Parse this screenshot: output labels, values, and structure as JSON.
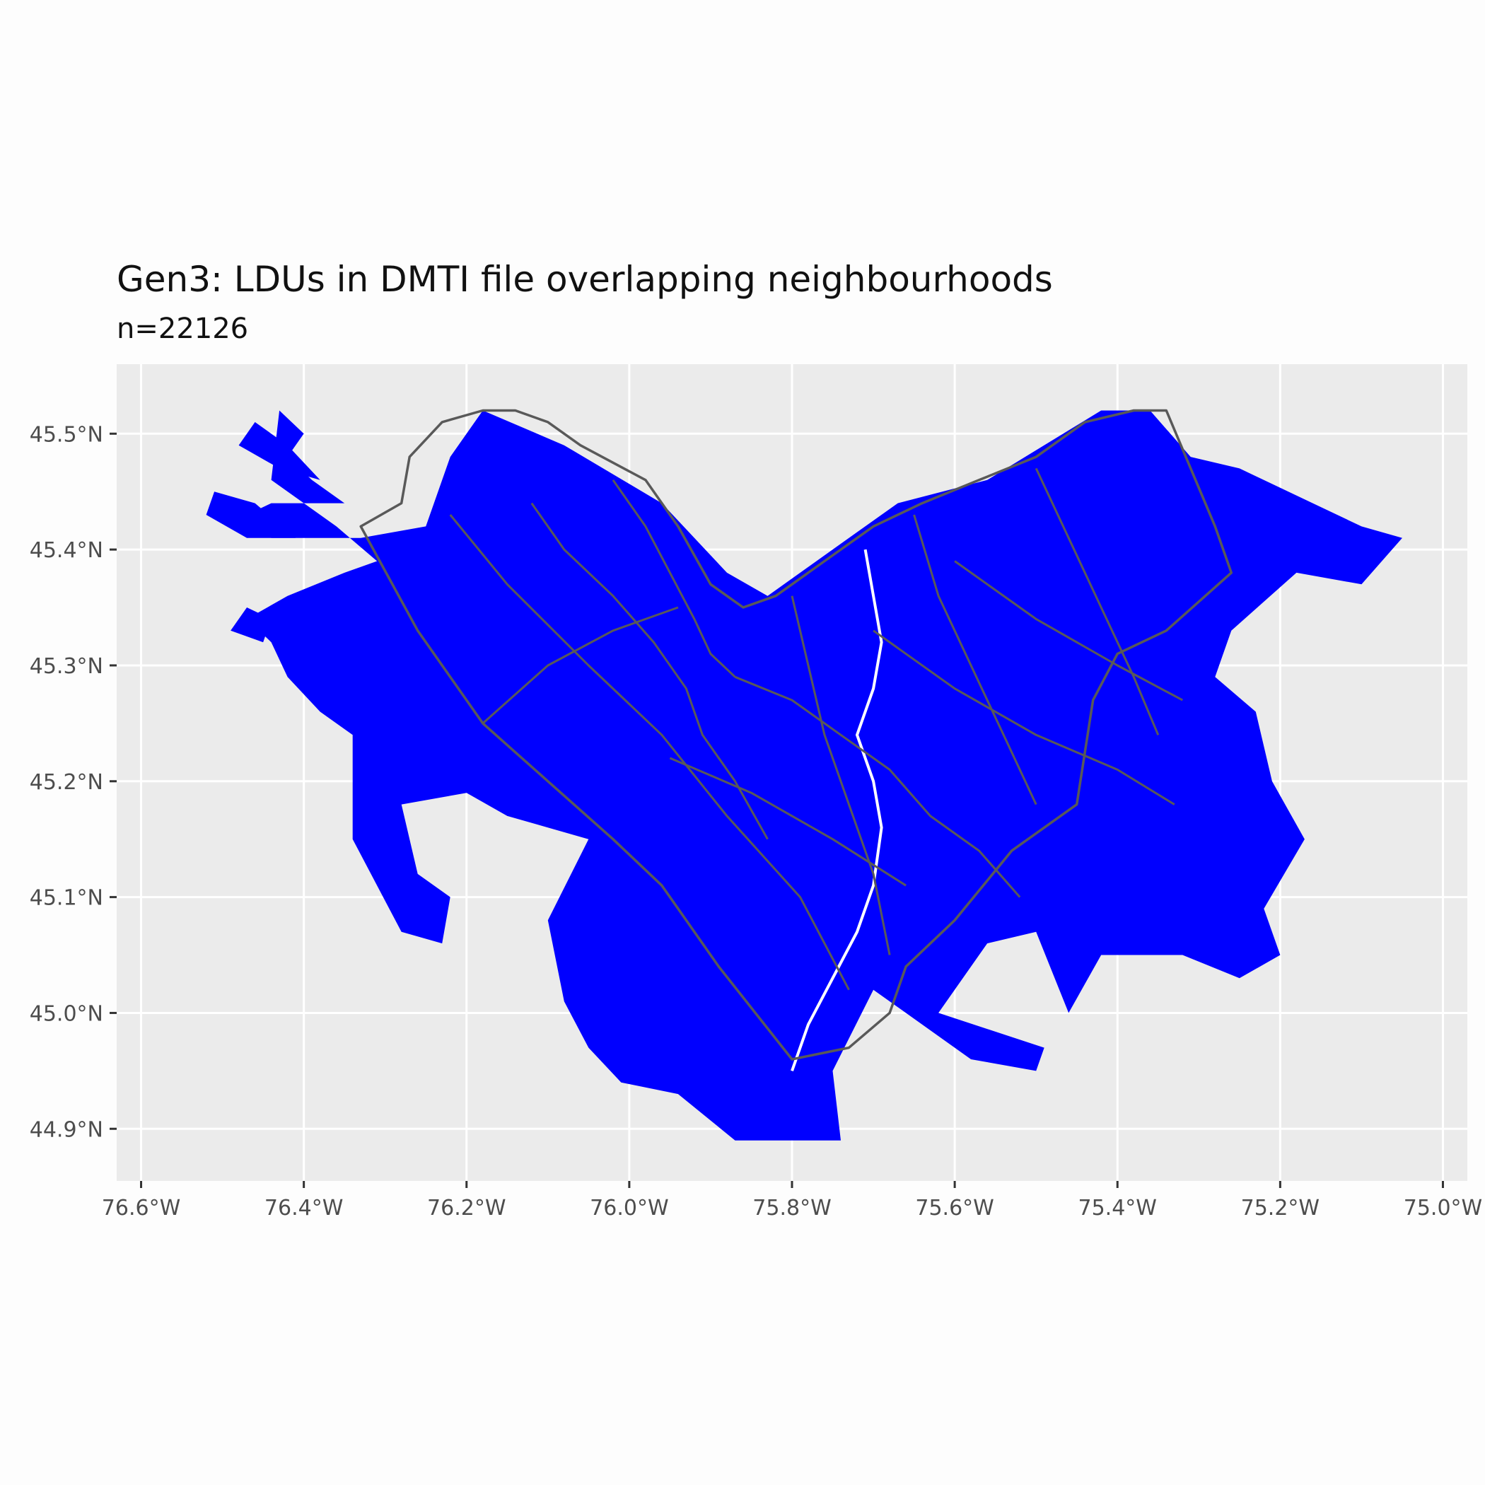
{
  "title": "Gen3: LDUs in DMTI file overlapping neighbourhoods",
  "subtitle": "n=22126",
  "colors": {
    "panel_background": "#ebebeb",
    "grid": "#ffffff",
    "fill": "#0000ff",
    "boundary": "#595959",
    "axis_text": "#4d4d4d"
  },
  "chart_data": {
    "type": "map",
    "x_range": [
      -76.63,
      -74.97
    ],
    "y_range": [
      44.855,
      45.56
    ],
    "x_ticks": [
      {
        "value": -76.6,
        "label": "76.6°W"
      },
      {
        "value": -76.4,
        "label": "76.4°W"
      },
      {
        "value": -76.2,
        "label": "76.2°W"
      },
      {
        "value": -76.0,
        "label": "76.0°W"
      },
      {
        "value": -75.8,
        "label": "75.8°W"
      },
      {
        "value": -75.6,
        "label": "75.6°W"
      },
      {
        "value": -75.4,
        "label": "75.4°W"
      },
      {
        "value": -75.2,
        "label": "75.2°W"
      },
      {
        "value": -75.0,
        "label": "75.0°W"
      }
    ],
    "y_ticks": [
      {
        "value": 45.5,
        "label": "45.5°N"
      },
      {
        "value": 45.4,
        "label": "45.4°N"
      },
      {
        "value": 45.3,
        "label": "45.3°N"
      },
      {
        "value": 45.2,
        "label": "45.2°N"
      },
      {
        "value": 45.1,
        "label": "45.1°N"
      },
      {
        "value": 45.0,
        "label": "45.0°N"
      },
      {
        "value": 44.9,
        "label": "44.9°N"
      }
    ],
    "ldu_coverage_outline": [
      [
        -76.43,
        45.52
      ],
      [
        -76.4,
        45.5
      ],
      [
        -76.42,
        45.48
      ],
      [
        -76.39,
        45.46
      ],
      [
        -76.35,
        45.44
      ],
      [
        -76.44,
        45.44
      ],
      [
        -76.47,
        45.43
      ],
      [
        -76.44,
        45.41
      ],
      [
        -76.33,
        45.41
      ],
      [
        -76.25,
        45.42
      ],
      [
        -76.22,
        45.48
      ],
      [
        -76.18,
        45.52
      ],
      [
        -76.08,
        45.49
      ],
      [
        -75.96,
        45.44
      ],
      [
        -75.88,
        45.38
      ],
      [
        -75.83,
        45.36
      ],
      [
        -75.75,
        45.4
      ],
      [
        -75.67,
        45.44
      ],
      [
        -75.56,
        45.46
      ],
      [
        -75.42,
        45.52
      ],
      [
        -75.36,
        45.52
      ],
      [
        -75.31,
        45.48
      ],
      [
        -75.25,
        45.47
      ],
      [
        -75.16,
        45.44
      ],
      [
        -75.1,
        45.42
      ],
      [
        -75.05,
        45.41
      ],
      [
        -75.1,
        45.37
      ],
      [
        -75.18,
        45.38
      ],
      [
        -75.26,
        45.33
      ],
      [
        -75.28,
        45.29
      ],
      [
        -75.23,
        45.26
      ],
      [
        -75.21,
        45.2
      ],
      [
        -75.17,
        45.15
      ],
      [
        -75.22,
        45.09
      ],
      [
        -75.2,
        45.05
      ],
      [
        -75.25,
        45.03
      ],
      [
        -75.32,
        45.05
      ],
      [
        -75.42,
        45.05
      ],
      [
        -75.46,
        45.0
      ],
      [
        -75.5,
        45.07
      ],
      [
        -75.56,
        45.06
      ],
      [
        -75.62,
        45.0
      ],
      [
        -75.49,
        44.97
      ],
      [
        -75.5,
        44.95
      ],
      [
        -75.58,
        44.96
      ],
      [
        -75.7,
        45.02
      ],
      [
        -75.75,
        44.95
      ],
      [
        -75.74,
        44.89
      ],
      [
        -75.87,
        44.89
      ],
      [
        -75.94,
        44.93
      ],
      [
        -76.01,
        44.94
      ],
      [
        -76.05,
        44.97
      ],
      [
        -76.08,
        45.01
      ],
      [
        -76.1,
        45.08
      ],
      [
        -76.05,
        45.15
      ],
      [
        -76.15,
        45.17
      ],
      [
        -76.2,
        45.19
      ],
      [
        -76.28,
        45.18
      ],
      [
        -76.26,
        45.12
      ],
      [
        -76.22,
        45.1
      ],
      [
        -76.23,
        45.06
      ],
      [
        -76.28,
        45.07
      ],
      [
        -76.34,
        45.15
      ],
      [
        -76.34,
        45.24
      ],
      [
        -76.38,
        45.26
      ],
      [
        -76.42,
        45.29
      ],
      [
        -76.44,
        45.32
      ],
      [
        -76.47,
        45.34
      ],
      [
        -76.42,
        45.36
      ],
      [
        -76.35,
        45.38
      ],
      [
        -76.31,
        45.39
      ],
      [
        -76.36,
        45.42
      ],
      [
        -76.44,
        45.46
      ]
    ],
    "ldu_west_islands": [
      [
        [
          -76.46,
          45.51
        ],
        [
          -76.42,
          45.49
        ],
        [
          -76.38,
          45.46
        ],
        [
          -76.43,
          45.47
        ],
        [
          -76.48,
          45.49
        ]
      ],
      [
        [
          -76.51,
          45.45
        ],
        [
          -76.46,
          45.44
        ],
        [
          -76.41,
          45.41
        ],
        [
          -76.47,
          45.41
        ],
        [
          -76.52,
          45.43
        ]
      ],
      [
        [
          -76.47,
          45.35
        ],
        [
          -76.44,
          45.34
        ],
        [
          -76.45,
          45.32
        ],
        [
          -76.49,
          45.33
        ]
      ]
    ],
    "neighbourhood_outline": [
      [
        -76.33,
        45.42
      ],
      [
        -76.28,
        45.44
      ],
      [
        -76.27,
        45.48
      ],
      [
        -76.23,
        45.51
      ],
      [
        -76.18,
        45.52
      ],
      [
        -76.14,
        45.52
      ],
      [
        -76.1,
        45.51
      ],
      [
        -76.06,
        45.49
      ],
      [
        -75.98,
        45.46
      ],
      [
        -75.94,
        45.42
      ],
      [
        -75.9,
        45.37
      ],
      [
        -75.86,
        45.35
      ],
      [
        -75.82,
        45.36
      ],
      [
        -75.76,
        45.39
      ],
      [
        -75.7,
        45.42
      ],
      [
        -75.64,
        45.44
      ],
      [
        -75.57,
        45.46
      ],
      [
        -75.5,
        45.48
      ],
      [
        -75.44,
        45.51
      ],
      [
        -75.38,
        45.52
      ],
      [
        -75.34,
        45.52
      ],
      [
        -75.31,
        45.47
      ],
      [
        -75.28,
        45.42
      ],
      [
        -75.26,
        45.38
      ],
      [
        -75.34,
        45.33
      ],
      [
        -75.4,
        45.31
      ],
      [
        -75.43,
        45.27
      ],
      [
        -75.45,
        45.18
      ],
      [
        -75.53,
        45.14
      ],
      [
        -75.6,
        45.08
      ],
      [
        -75.66,
        45.04
      ],
      [
        -75.68,
        45.0
      ],
      [
        -75.73,
        44.97
      ],
      [
        -75.8,
        44.96
      ],
      [
        -75.89,
        45.04
      ],
      [
        -75.96,
        45.11
      ],
      [
        -76.02,
        45.15
      ],
      [
        -76.1,
        45.2
      ],
      [
        -76.18,
        45.25
      ],
      [
        -76.26,
        45.33
      ]
    ],
    "neighbourhood_internal_lines": [
      [
        [
          -76.22,
          45.43
        ],
        [
          -76.15,
          45.37
        ],
        [
          -76.05,
          45.3
        ],
        [
          -75.96,
          45.24
        ],
        [
          -75.88,
          45.17
        ],
        [
          -75.79,
          45.1
        ],
        [
          -75.73,
          45.02
        ]
      ],
      [
        [
          -76.02,
          45.46
        ],
        [
          -75.98,
          45.42
        ],
        [
          -75.95,
          45.38
        ],
        [
          -75.92,
          45.34
        ],
        [
          -75.9,
          45.31
        ],
        [
          -75.87,
          45.29
        ]
      ],
      [
        [
          -76.12,
          45.44
        ],
        [
          -76.08,
          45.4
        ],
        [
          -76.02,
          45.36
        ],
        [
          -75.97,
          45.32
        ],
        [
          -75.93,
          45.28
        ],
        [
          -75.91,
          45.24
        ],
        [
          -75.87,
          45.2
        ],
        [
          -75.83,
          45.15
        ]
      ],
      [
        [
          -75.87,
          45.29
        ],
        [
          -75.8,
          45.27
        ],
        [
          -75.74,
          45.24
        ],
        [
          -75.68,
          45.21
        ],
        [
          -75.63,
          45.17
        ],
        [
          -75.57,
          45.14
        ],
        [
          -75.52,
          45.1
        ]
      ],
      [
        [
          -75.8,
          45.36
        ],
        [
          -75.78,
          45.3
        ],
        [
          -75.76,
          45.24
        ],
        [
          -75.73,
          45.18
        ],
        [
          -75.7,
          45.12
        ],
        [
          -75.68,
          45.05
        ]
      ],
      [
        [
          -75.65,
          45.43
        ],
        [
          -75.62,
          45.36
        ],
        [
          -75.58,
          45.3
        ],
        [
          -75.54,
          45.24
        ],
        [
          -75.5,
          45.18
        ]
      ],
      [
        [
          -75.5,
          45.47
        ],
        [
          -75.46,
          45.41
        ],
        [
          -75.42,
          45.35
        ],
        [
          -75.38,
          45.29
        ],
        [
          -75.35,
          45.24
        ]
      ],
      [
        [
          -75.6,
          45.39
        ],
        [
          -75.5,
          45.34
        ],
        [
          -75.4,
          45.3
        ],
        [
          -75.32,
          45.27
        ]
      ],
      [
        [
          -75.7,
          45.33
        ],
        [
          -75.6,
          45.28
        ],
        [
          -75.5,
          45.24
        ],
        [
          -75.4,
          45.21
        ],
        [
          -75.33,
          45.18
        ]
      ],
      [
        [
          -75.95,
          45.22
        ],
        [
          -75.85,
          45.19
        ],
        [
          -75.75,
          45.15
        ],
        [
          -75.66,
          45.11
        ]
      ],
      [
        [
          -76.18,
          45.25
        ],
        [
          -76.1,
          45.3
        ],
        [
          -76.02,
          45.33
        ],
        [
          -75.94,
          45.35
        ]
      ]
    ],
    "river": [
      [
        -75.8,
        44.95
      ],
      [
        -75.78,
        44.99
      ],
      [
        -75.75,
        45.03
      ],
      [
        -75.72,
        45.07
      ],
      [
        -75.7,
        45.11
      ],
      [
        -75.69,
        45.16
      ],
      [
        -75.7,
        45.2
      ],
      [
        -75.72,
        45.24
      ],
      [
        -75.7,
        45.28
      ],
      [
        -75.69,
        45.32
      ],
      [
        -75.7,
        45.36
      ],
      [
        -75.71,
        45.4
      ]
    ]
  }
}
